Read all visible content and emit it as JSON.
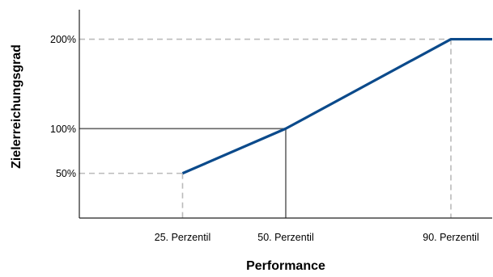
{
  "chart_data": {
    "type": "line",
    "title": "",
    "xlabel": "Performance",
    "ylabel": "Zielerreichungsgrad",
    "x_unit": "Perzentil",
    "xlim": [
      0,
      100
    ],
    "ylim": [
      0,
      233
    ],
    "grid": false,
    "legend": "none",
    "series": [
      {
        "x": [
          25,
          50,
          90,
          100
        ],
        "y": [
          50,
          100,
          200,
          200
        ],
        "color": "#0b4a8b"
      }
    ],
    "x_ticks": [
      {
        "value": 25,
        "label": "25. Perzentil"
      },
      {
        "value": 50,
        "label": "50. Perzentil"
      },
      {
        "value": 90,
        "label": "90. Perzentil"
      }
    ],
    "y_ticks": [
      {
        "value": 50,
        "label": "50%"
      },
      {
        "value": 100,
        "label": "100%"
      },
      {
        "value": 200,
        "label": "200%"
      }
    ],
    "reference_lines": [
      {
        "x": 25,
        "y": 50,
        "style": "dashed",
        "color": "#bbbbbb"
      },
      {
        "x": 50,
        "y": 100,
        "style": "solid",
        "color": "#666666"
      },
      {
        "x": 90,
        "y": 200,
        "style": "dashed",
        "color": "#bbbbbb"
      }
    ],
    "colors": {
      "line": "#0b4a8b",
      "axis": "#222222",
      "solid_guide": "#666666",
      "dashed_guide": "#bbbbbb"
    }
  }
}
